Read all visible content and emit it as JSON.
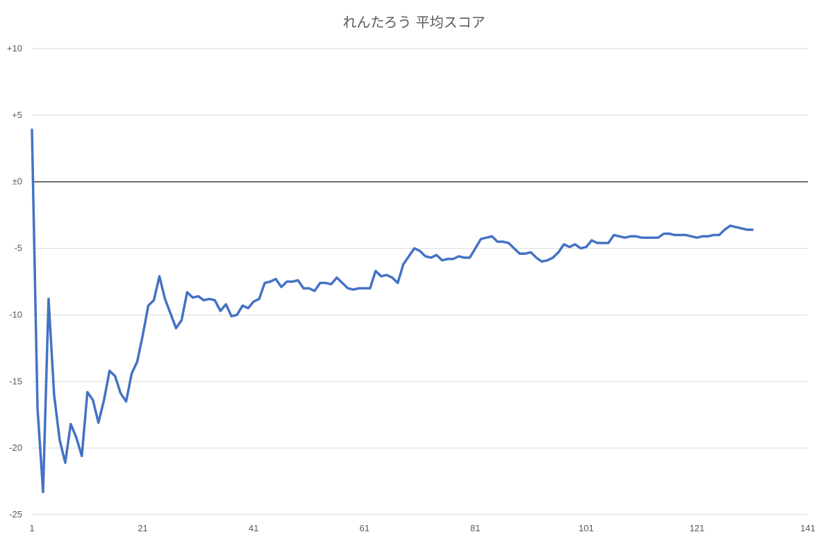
{
  "chart_data": {
    "type": "line",
    "title": "れんたろう 平均スコア",
    "xlabel": "",
    "ylabel": "",
    "xlim": [
      1,
      141
    ],
    "ylim": [
      -25,
      10
    ],
    "x_ticks": [
      1,
      21,
      41,
      61,
      81,
      101,
      121,
      141
    ],
    "x_tick_labels": [
      "1",
      "21",
      "41",
      "61",
      "81",
      "101",
      "121",
      "141"
    ],
    "y_ticks": [
      10,
      5,
      0,
      -5,
      -10,
      -15,
      -20,
      -25
    ],
    "y_tick_labels": [
      "+10",
      "+5",
      "±0",
      "-5",
      "-10",
      "-15",
      "-20",
      "-25"
    ],
    "grid": true,
    "zero_line": true,
    "series": [
      {
        "color": "#4472C4",
        "x_start": 1,
        "values": [
          3.9,
          -17.0,
          -23.3,
          -8.8,
          -16.0,
          -19.4,
          -21.1,
          -18.2,
          -19.2,
          -20.6,
          -15.8,
          -16.4,
          -18.1,
          -16.4,
          -14.2,
          -14.6,
          -15.9,
          -16.5,
          -14.4,
          -13.5,
          -11.5,
          -9.3,
          -8.9,
          -7.1,
          -8.8,
          -9.9,
          -11.0,
          -10.4,
          -8.3,
          -8.7,
          -8.6,
          -8.9,
          -8.8,
          -8.9,
          -9.7,
          -9.2,
          -10.1,
          -10.0,
          -9.3,
          -9.5,
          -9.0,
          -8.8,
          -7.6,
          -7.5,
          -7.3,
          -7.9,
          -7.5,
          -7.5,
          -7.4,
          -8.0,
          -8.0,
          -8.2,
          -7.6,
          -7.6,
          -7.7,
          -7.2,
          -7.6,
          -8.0,
          -8.1,
          -8.0,
          -8.0,
          -8.0,
          -6.7,
          -7.1,
          -7.0,
          -7.2,
          -7.6,
          -6.2,
          -5.6,
          -5.0,
          -5.2,
          -5.6,
          -5.7,
          -5.5,
          -5.9,
          -5.8,
          -5.8,
          -5.6,
          -5.7,
          -5.7,
          -5.0,
          -4.3,
          -4.2,
          -4.1,
          -4.5,
          -4.5,
          -4.6,
          -5.0,
          -5.4,
          -5.4,
          -5.3,
          -5.7,
          -6.0,
          -5.9,
          -5.7,
          -5.3,
          -4.7,
          -4.9,
          -4.7,
          -5.0,
          -4.9,
          -4.4,
          -4.6,
          -4.6,
          -4.6,
          -4.0,
          -4.1,
          -4.2,
          -4.1,
          -4.1,
          -4.2,
          -4.2,
          -4.2,
          -4.2,
          -3.9,
          -3.9,
          -4.0,
          -4.0,
          -4.0,
          -4.1,
          -4.2,
          -4.1,
          -4.1,
          -4.0,
          -4.0,
          -3.6,
          -3.3,
          -3.4,
          -3.5,
          -3.6,
          -3.6
        ]
      }
    ]
  }
}
